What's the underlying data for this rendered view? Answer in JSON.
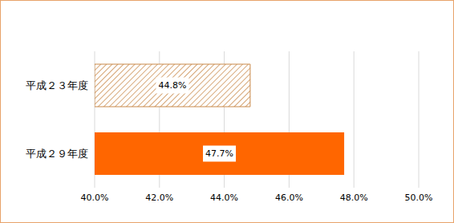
{
  "chart_data": {
    "type": "bar",
    "orientation": "horizontal",
    "categories": [
      "平成２３年度",
      "平成２９年度"
    ],
    "values": [
      44.8,
      47.7
    ],
    "value_labels": [
      "44.8%",
      "47.7%"
    ],
    "data_labels": true,
    "colors": [
      "#c98a4b",
      "#ff6600"
    ],
    "xlim": [
      40,
      50
    ],
    "xticks": [
      {
        "value": 40,
        "label": "40.0%"
      },
      {
        "value": 42,
        "label": "42.0%"
      },
      {
        "value": 44,
        "label": "44.0%"
      },
      {
        "value": 46,
        "label": "46.0%"
      },
      {
        "value": 48,
        "label": "48.0%"
      },
      {
        "value": 50,
        "label": "50.0%"
      }
    ],
    "grid": true
  }
}
